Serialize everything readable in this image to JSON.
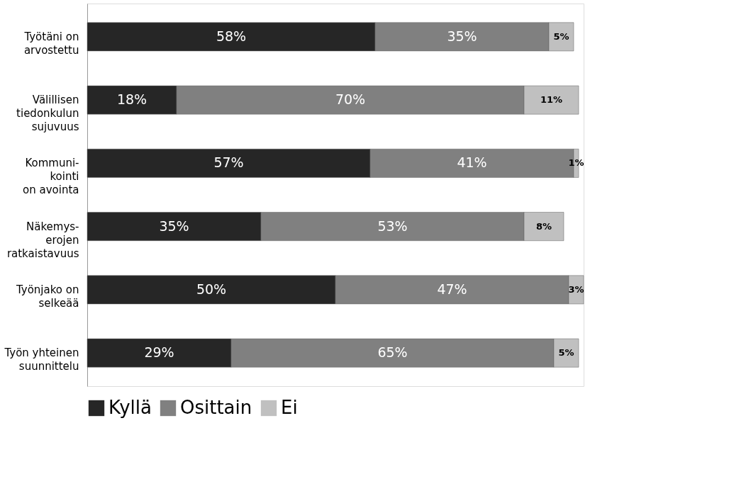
{
  "chart_data": {
    "type": "bar",
    "orientation": "horizontal",
    "stacked": true,
    "legend": "bottom",
    "categories": [
      "Työtäni on\narvostettu",
      "Välillisen\ntiedonkulun\nsujuvuus",
      "Kommuni-\nkointi\non avointa",
      "Näkemys-\nerojen\nratkaistavuus",
      "Työnjako on\nselkeää",
      "Työn yhteinen\nsuunnittelu"
    ],
    "series": [
      {
        "name": "Kyllä",
        "color": "#262626",
        "values": [
          58,
          18,
          57,
          35,
          50,
          29
        ],
        "value_labels": [
          "58%",
          "18%",
          "57%",
          "35%",
          "50%",
          "29%"
        ]
      },
      {
        "name": "Osittain",
        "color": "#808080",
        "values": [
          35,
          70,
          41,
          53,
          47,
          65
        ],
        "value_labels": [
          "35%",
          "70%",
          "41%",
          "53%",
          "47%",
          "65%"
        ]
      },
      {
        "name": "Ei",
        "color": "#c0c0c0",
        "values": [
          5,
          11,
          1,
          8,
          3,
          5
        ],
        "value_labels": [
          "5%",
          "11%",
          "1%",
          "8%",
          "3%",
          "5%"
        ]
      }
    ]
  }
}
